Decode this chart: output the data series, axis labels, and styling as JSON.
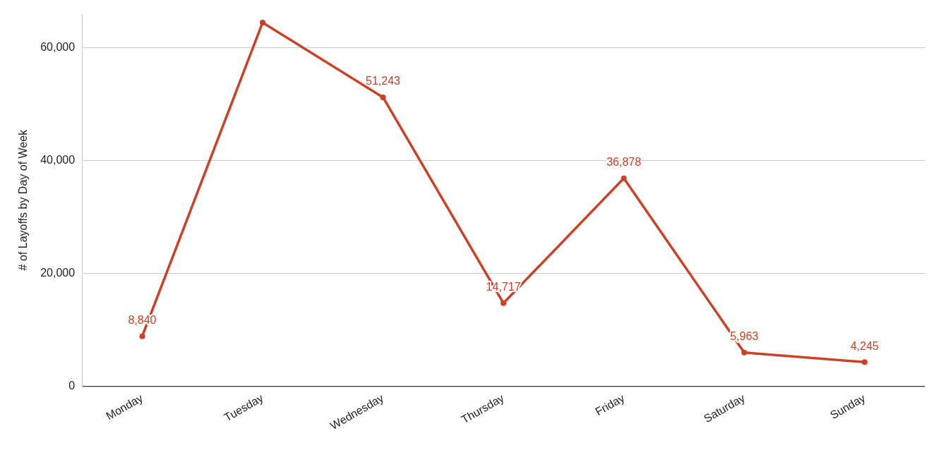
{
  "chart_data": {
    "type": "line",
    "ylabel": "# of Layoffs by Day of Week",
    "categories": [
      "Monday",
      "Tuesday",
      "Wednesday",
      "Thursday",
      "Friday",
      "Saturday",
      "Sunday"
    ],
    "series": [
      {
        "color": "#cc4125",
        "values": [
          8840,
          64500,
          51243,
          14717,
          36878,
          5963,
          4245
        ],
        "value_labels": [
          "8,840",
          null,
          "51,243",
          "14,717",
          "36,878",
          "5,963",
          "4,245"
        ]
      }
    ],
    "ylim": [
      0,
      66000
    ],
    "yticks": [
      {
        "value": 0,
        "label": "0"
      },
      {
        "value": 20000,
        "label": "20,000"
      },
      {
        "value": 40000,
        "label": "40,000"
      },
      {
        "value": 60000,
        "label": "60,000"
      }
    ],
    "grid": "y",
    "marker": "circle",
    "line_style": "solid",
    "legend": false
  }
}
